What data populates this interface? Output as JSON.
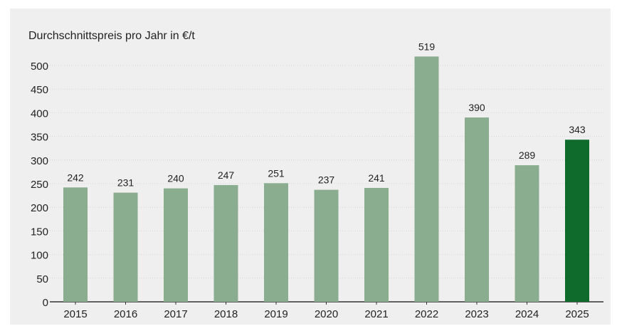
{
  "chart_data": {
    "type": "bar",
    "title": "Durchschnittspreis pro Jahr in €/t",
    "categories": [
      "2015",
      "2016",
      "2017",
      "2018",
      "2019",
      "2020",
      "2021",
      "2022",
      "2023",
      "2024",
      "2025"
    ],
    "values": [
      242,
      231,
      240,
      247,
      251,
      237,
      241,
      519,
      390,
      289,
      343
    ],
    "ylim": [
      0,
      500
    ],
    "yticks": [
      0,
      50,
      100,
      150,
      200,
      250,
      300,
      350,
      400,
      450,
      500
    ],
    "grid": true,
    "colors": {
      "default": "#8aad8f",
      "highlight": "#0e6b2c"
    },
    "highlight_category": "2025"
  }
}
